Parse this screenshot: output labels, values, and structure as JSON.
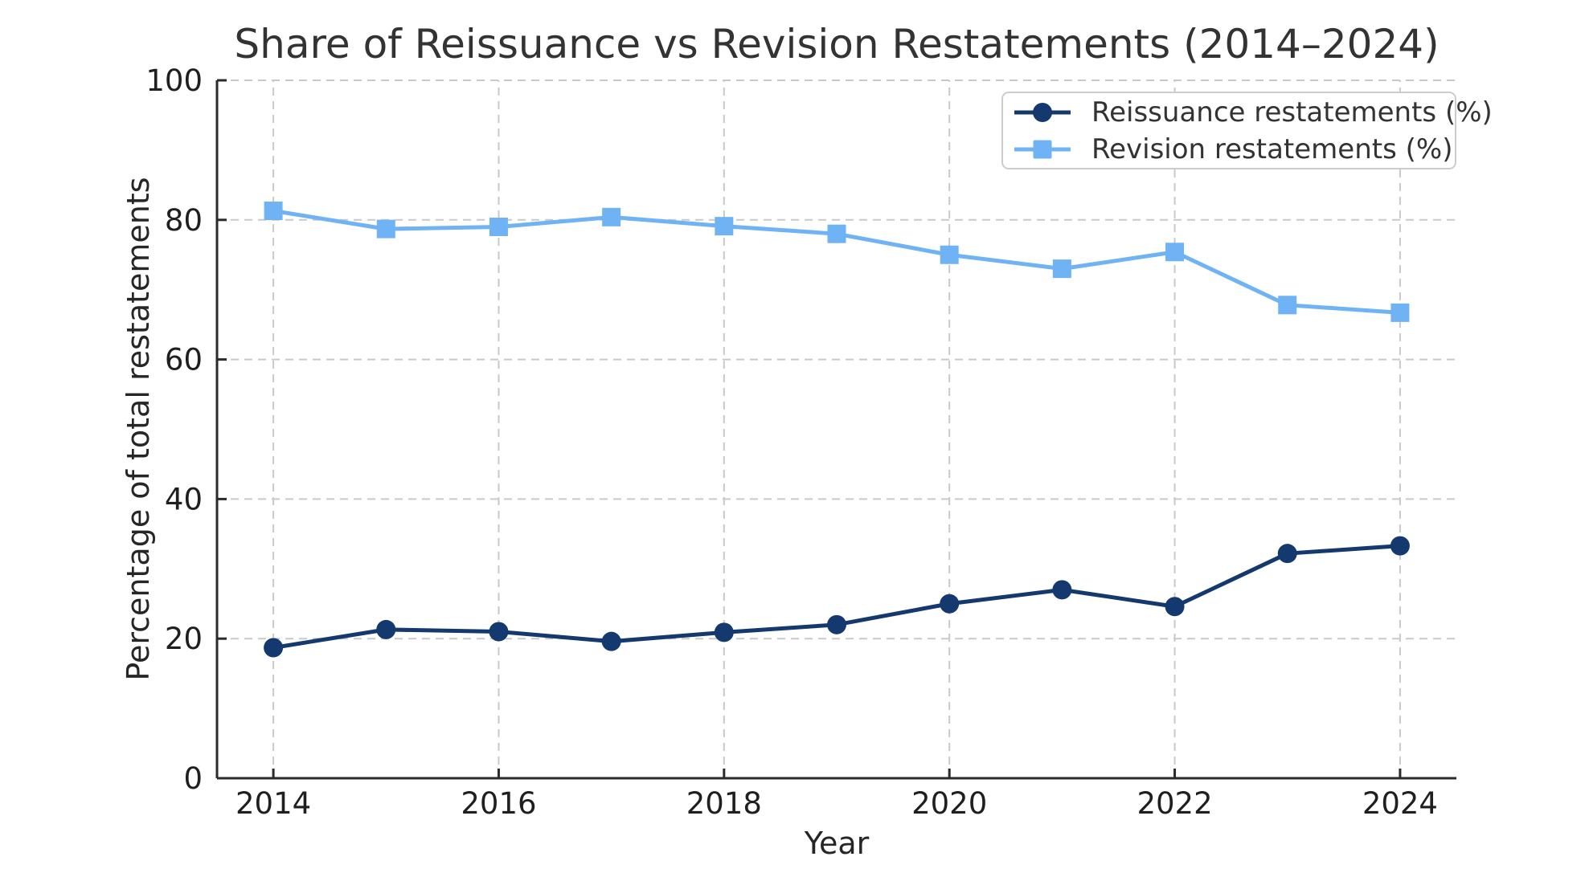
{
  "chart": {
    "title": "Share of Reissuance vs Revision Restatements (2014–2024)",
    "xlabel": "Year",
    "ylabel": "Percentage of total restatements"
  },
  "legend": {
    "items": [
      {
        "label": "Reissuance restatements (%)",
        "color": "#14396f",
        "marker": "circle"
      },
      {
        "label": "Revision restatements (%)",
        "color": "#6fb3f5",
        "marker": "square"
      }
    ]
  },
  "chart_data": {
    "type": "line",
    "title": "Share of Reissuance vs Revision Restatements (2014–2024)",
    "xlabel": "Year",
    "ylabel": "Percentage of total restatements",
    "x": [
      2014,
      2015,
      2016,
      2017,
      2018,
      2019,
      2020,
      2021,
      2022,
      2023,
      2024
    ],
    "series": [
      {
        "name": "Reissuance restatements (%)",
        "color": "#14396f",
        "marker": "circle",
        "values": [
          18.7,
          21.3,
          21.0,
          19.6,
          20.9,
          22.0,
          25.0,
          27.0,
          24.6,
          32.2,
          33.3
        ]
      },
      {
        "name": "Revision restatements (%)",
        "color": "#6fb3f5",
        "marker": "square",
        "values": [
          81.3,
          78.7,
          79.0,
          80.4,
          79.1,
          78.0,
          75.0,
          73.0,
          75.4,
          67.8,
          66.7
        ]
      }
    ],
    "xlim": [
      2013.5,
      2024.5
    ],
    "ylim": [
      0,
      100
    ],
    "xticks": [
      2014,
      2016,
      2018,
      2020,
      2022,
      2024
    ],
    "yticks": [
      0,
      20,
      40,
      60,
      80,
      100
    ],
    "grid": true,
    "grid_style": "dashed",
    "legend_position": "upper right",
    "colors": {
      "grid": "#c9c9c9",
      "spine": "#2b2b2b",
      "tick_label": "#1f1f1f"
    }
  }
}
